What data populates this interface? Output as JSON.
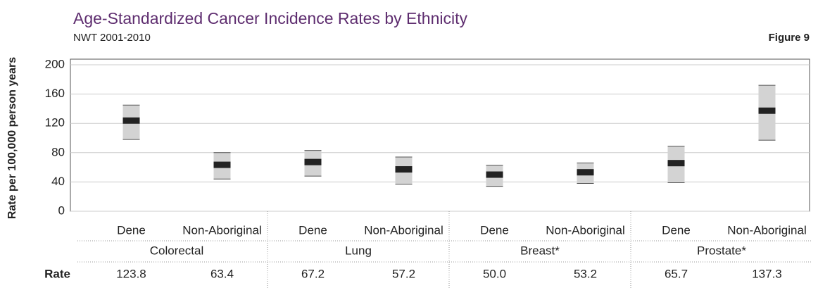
{
  "chart_data": {
    "type": "range",
    "title": "Age-Standardized Cancer Incidence Rates by Ethnicity",
    "subtitle": "NWT 2001-2010",
    "figure_label": "Figure 9",
    "y_label": "Rate per 100,000 person years",
    "row_label": "Rate",
    "categories": [
      "Dene",
      "Non-Aboriginal",
      "Dene",
      "Non-Aboriginal",
      "Dene",
      "Non-Aboriginal",
      "Dene",
      "Non-Aboriginal"
    ],
    "groups": [
      "Colorectal",
      "Lung",
      "Breast*",
      "Prostate*"
    ],
    "values": [
      123.8,
      63.4,
      67.2,
      57.2,
      50.0,
      53.2,
      65.7,
      137.3
    ],
    "value_labels": [
      "123.8",
      "63.4",
      "67.2",
      "57.2",
      "50.0",
      "53.2",
      "65.7",
      "137.3"
    ],
    "lower": [
      98,
      44,
      48,
      37,
      34,
      38,
      39,
      97
    ],
    "upper": [
      145,
      80,
      83,
      74,
      63,
      66,
      89,
      172
    ],
    "range_color": "#d3d3d3",
    "color": "#222222",
    "ylim": [
      0,
      200
    ],
    "yticks": [
      0,
      40,
      80,
      120,
      160,
      200
    ],
    "grid": true
  }
}
